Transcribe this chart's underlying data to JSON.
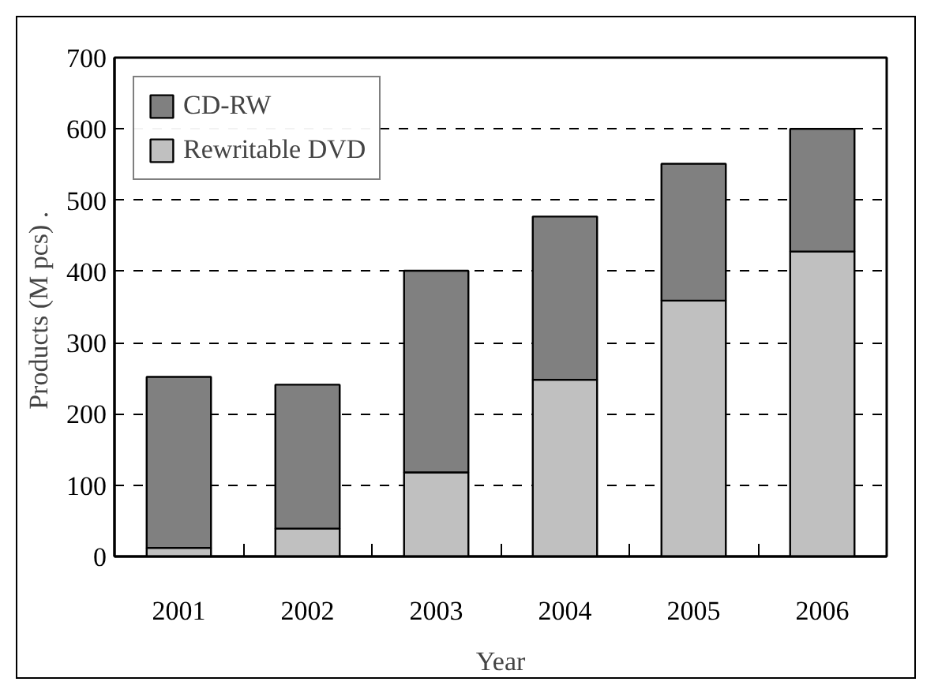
{
  "chart_data": {
    "type": "bar",
    "stacked": true,
    "xlabel": "Year",
    "ylabel": "Products (M pcs)  .",
    "categories": [
      "2001",
      "2002",
      "2003",
      "2004",
      "2005",
      "2006"
    ],
    "series": [
      {
        "name": "Rewritable DVD",
        "color": "#c0c0c0",
        "values": [
          12,
          39,
          118,
          248,
          359,
          428
        ]
      },
      {
        "name": "CD-RW",
        "color": "#808080",
        "values": [
          240,
          202,
          283,
          229,
          192,
          172
        ]
      }
    ],
    "ylim": [
      0,
      700
    ],
    "yticks": [
      0,
      100,
      200,
      300,
      400,
      500,
      600,
      700
    ],
    "grid": "y",
    "legend": "top left"
  }
}
